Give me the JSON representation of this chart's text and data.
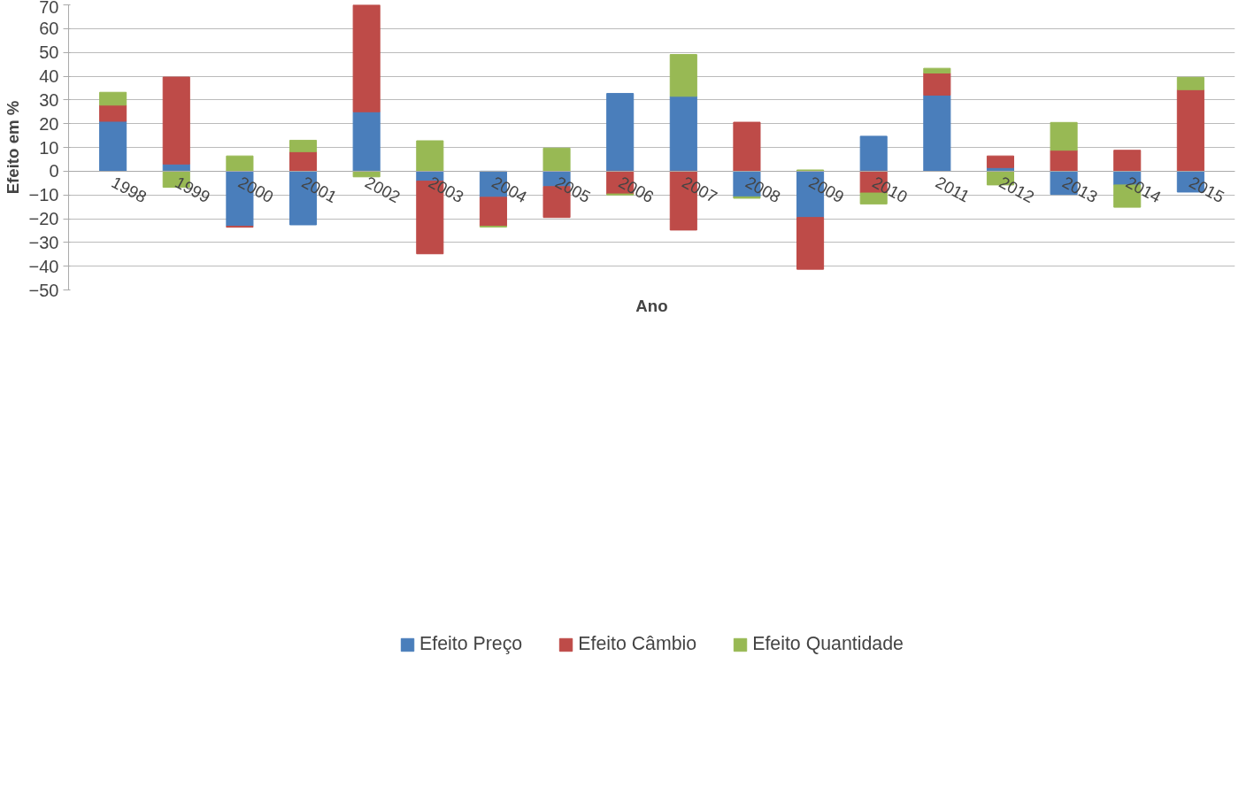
{
  "chart_data": {
    "type": "bar",
    "stacked": true,
    "xlabel": "Ano",
    "ylabel": "Efeito em %",
    "categories": [
      "1998",
      "1999",
      "2000",
      "2001",
      "2002",
      "2003",
      "2004",
      "2005",
      "2006",
      "2007",
      "2008",
      "2009",
      "2010",
      "2011",
      "2012",
      "2013",
      "2014",
      "2015"
    ],
    "series": [
      {
        "name": "Efeito Preço",
        "color": "#4a7ebb",
        "values": [
          21,
          3,
          -23.2,
          -22.6,
          25,
          -4.2,
          -11,
          -6.5,
          32.7,
          31.5,
          -10.8,
          -19.5,
          14.7,
          32,
          1.5,
          -9.8,
          -5.8,
          -8.8
        ]
      },
      {
        "name": "Efeito Câmbio",
        "color": "#be4b48",
        "values": [
          6.8,
          36.6,
          -0.4,
          8.2,
          45,
          -30.6,
          -12.2,
          -13,
          -9.6,
          -24.8,
          20.6,
          -21.8,
          -9.2,
          9.3,
          4.9,
          8.8,
          8.8,
          34.3
        ]
      },
      {
        "name": "Efeito Quantidade",
        "color": "#98b954",
        "values": [
          5.4,
          -6.8,
          6.4,
          4.8,
          -2.4,
          12.8,
          -0.3,
          9.7,
          -0.4,
          17.6,
          -0.6,
          0.5,
          -4.6,
          2,
          -5.8,
          11.7,
          -9.4,
          5.2
        ]
      }
    ],
    "ylim": [
      -50,
      70
    ],
    "yticks": [
      -50,
      -40,
      -30,
      -20,
      -10,
      0,
      10,
      20,
      30,
      40,
      50,
      60,
      70
    ],
    "grid": "y",
    "legend": "bottom"
  }
}
